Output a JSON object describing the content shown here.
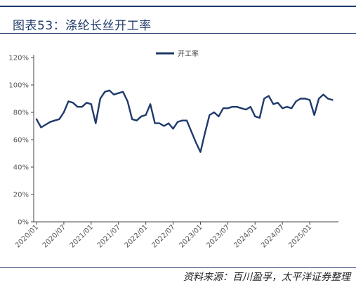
{
  "header": {
    "title": "图表53：涤纶长丝开工率"
  },
  "footer": {
    "source": "资料来源：百川盈孚，太平洋证券整理"
  },
  "colors": {
    "accent": "#1f3a6b",
    "series": "#1f3a6b"
  },
  "chart_data": {
    "type": "line",
    "title": "",
    "xlabel": "",
    "ylabel": "",
    "ylim": [
      0,
      120
    ],
    "yticks": [
      "0%",
      "20%",
      "40%",
      "60%",
      "80%",
      "100%",
      "120%"
    ],
    "xticks": [
      "2020/01",
      "2020/07",
      "2021/01",
      "2021/07",
      "2022/01",
      "2022/07",
      "2023/01",
      "2023/07",
      "2024/01",
      "2024/07",
      "2025/01"
    ],
    "legend": {
      "position": "top-center"
    },
    "grid": false,
    "series": [
      {
        "name": "开工率",
        "x": [
          "2020/01",
          "2020/02",
          "2020/03",
          "2020/04",
          "2020/05",
          "2020/06",
          "2020/07",
          "2020/08",
          "2020/09",
          "2020/10",
          "2020/11",
          "2020/12",
          "2021/01",
          "2021/02",
          "2021/03",
          "2021/04",
          "2021/05",
          "2021/06",
          "2021/07",
          "2021/08",
          "2021/09",
          "2021/10",
          "2021/11",
          "2021/12",
          "2022/01",
          "2022/02",
          "2022/03",
          "2022/04",
          "2022/05",
          "2022/06",
          "2022/07",
          "2022/08",
          "2022/09",
          "2022/10",
          "2022/11",
          "2022/12",
          "2023/01",
          "2023/02",
          "2023/03",
          "2023/04",
          "2023/05",
          "2023/06",
          "2023/07",
          "2023/08",
          "2023/09",
          "2023/10",
          "2023/11",
          "2023/12",
          "2024/01",
          "2024/02",
          "2024/03",
          "2024/04",
          "2024/05",
          "2024/06",
          "2024/07",
          "2024/08",
          "2024/09",
          "2024/10",
          "2024/11",
          "2024/12",
          "2025/01",
          "2025/02",
          "2025/03",
          "2025/04",
          "2025/05",
          "2025/06"
        ],
        "values": [
          75,
          69,
          71,
          73,
          74,
          75,
          80,
          88,
          87,
          84,
          84,
          87,
          86,
          72,
          90,
          95,
          96,
          93,
          94,
          95,
          88,
          75,
          74,
          77,
          78,
          86,
          72,
          72,
          70,
          72,
          68,
          73,
          74,
          74,
          66,
          58,
          51,
          65,
          78,
          80,
          77,
          83,
          83,
          84,
          84,
          83,
          82,
          84,
          77,
          76,
          90,
          92,
          86,
          87,
          83,
          84,
          83,
          88,
          90,
          90,
          89,
          78,
          90,
          93,
          90,
          89
        ]
      }
    ]
  }
}
